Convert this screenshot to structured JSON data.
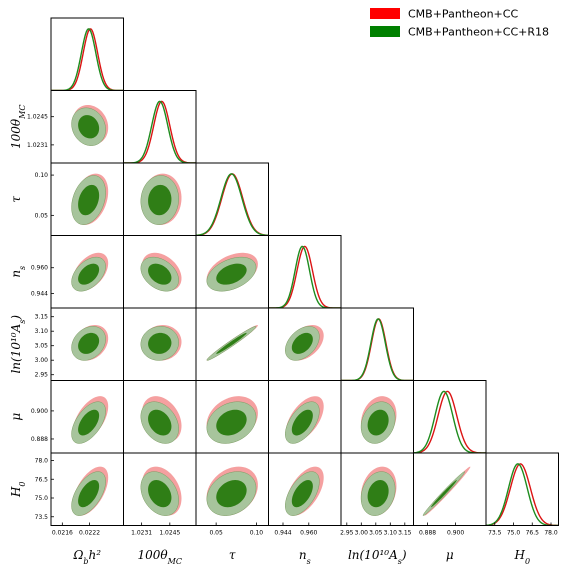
{
  "chart_data": {
    "type": "corner",
    "title": "",
    "grid": false,
    "legend_position": "top-right",
    "colors": {
      "red_line": "#dc1414",
      "red_fill_outer": "#f5a0a0",
      "red_fill_inner": "#e05555",
      "green_line": "#1e8c1e",
      "green_fill_outer": "#a7c49c",
      "green_fill_inner": "#2f7e16"
    },
    "series": [
      {
        "name": "CMB+Pantheon+CC",
        "color": "#ff0000",
        "means": [
          0.02222,
          1.0241,
          0.07,
          0.9575,
          3.06,
          0.8965,
          75.55
        ],
        "sigmas": [
          0.00016,
          0.0004,
          0.013,
          0.0048,
          0.025,
          0.004,
          0.8
        ]
      },
      {
        "name": "CMB+Pantheon+CC+R18",
        "color": "#008000",
        "means": [
          0.02218,
          1.024,
          0.069,
          0.956,
          3.058,
          0.895,
          75.35
        ],
        "sigmas": [
          0.00016,
          0.0004,
          0.013,
          0.0045,
          0.025,
          0.0038,
          0.75
        ]
      }
    ],
    "correlations": {
      "1-0": -0.15,
      "2-0": 0.3,
      "2-1": 0.05,
      "3-0": 0.45,
      "3-1": -0.35,
      "3-2": 0.4,
      "4-0": 0.25,
      "4-1": 0.05,
      "4-2": 0.98,
      "4-3": 0.4,
      "5-0": 0.55,
      "5-1": -0.3,
      "5-2": 0.25,
      "5-3": 0.55,
      "5-4": 0.2,
      "6-0": 0.55,
      "6-1": -0.3,
      "6-2": 0.25,
      "6-3": 0.55,
      "6-4": 0.2,
      "6-5": 0.99
    },
    "parameters": [
      {
        "label": "Ω",
        "sub": "b",
        "tail": "h²",
        "range": [
          0.02135,
          0.02295
        ],
        "xticks": [
          "0.0216",
          "0.0222"
        ],
        "yticks": []
      },
      {
        "label": "100θ",
        "sub": "MC",
        "tail": "",
        "range": [
          1.0222,
          1.0258
        ],
        "xticks": [
          "1.0231",
          "1.0245"
        ],
        "yticks": [
          "1.0245",
          "1.0231"
        ]
      },
      {
        "label": "τ",
        "sub": "",
        "tail": "",
        "range": [
          0.025,
          0.115
        ],
        "xticks": [
          "0.05",
          "0.10"
        ],
        "yticks": [
          "0.10",
          "0.05"
        ]
      },
      {
        "label": "n",
        "sub": "s",
        "tail": "",
        "range": [
          0.935,
          0.98
        ],
        "xticks": [
          "0.944",
          "0.960"
        ],
        "yticks": [
          "0.960",
          "0.944"
        ]
      },
      {
        "label": "ln(10¹⁰A",
        "sub": "s",
        "tail": ")",
        "range": [
          2.93,
          3.18
        ],
        "xticks": [
          "2.95",
          "3.00",
          "3.05",
          "3.10",
          "3.15"
        ],
        "yticks": [
          "3.15",
          "3.10",
          "3.05",
          "3.00",
          "2.95"
        ]
      },
      {
        "label": "μ",
        "sub": "",
        "tail": "",
        "range": [
          0.882,
          0.913
        ],
        "xticks": [
          "0.888",
          "0.900"
        ],
        "yticks": [
          "0.900",
          "0.888"
        ]
      },
      {
        "label": "H",
        "sub": "0",
        "tail": "",
        "range": [
          72.8,
          78.6
        ],
        "xticks": [
          "73.5",
          "75.0",
          "76.5",
          "78.0"
        ],
        "yticks": [
          "78.0",
          "76.5",
          "75.0",
          "73.5"
        ]
      }
    ]
  }
}
